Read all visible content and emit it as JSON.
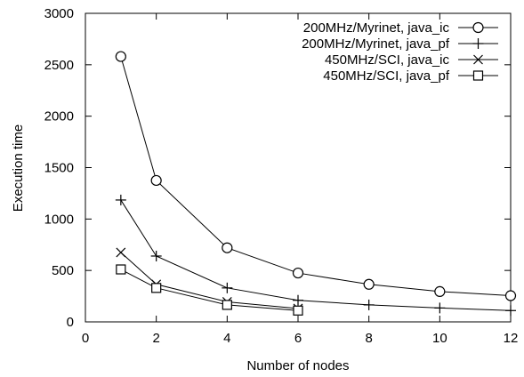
{
  "chart_data": {
    "type": "line",
    "title": "",
    "xlabel": "Number of nodes",
    "ylabel": "Execution time",
    "xlim": [
      0,
      12
    ],
    "ylim": [
      0,
      3000
    ],
    "xticks": [
      0,
      2,
      4,
      6,
      8,
      10,
      12
    ],
    "yticks": [
      0,
      500,
      1000,
      1500,
      2000,
      2500,
      3000
    ],
    "grid": false,
    "legend_position": "top-right",
    "series": [
      {
        "name": "200MHz/Myrinet, java_ic",
        "marker": "circle",
        "color": "#000000",
        "x": [
          1,
          2,
          4,
          6,
          8,
          10,
          12
        ],
        "y": [
          2580,
          1375,
          720,
          475,
          365,
          295,
          255
        ]
      },
      {
        "name": "200MHz/Myrinet, java_pf",
        "marker": "plus",
        "color": "#000000",
        "x": [
          1,
          2,
          4,
          6,
          8,
          10,
          12
        ],
        "y": [
          1185,
          640,
          330,
          210,
          165,
          135,
          110
        ]
      },
      {
        "name": "450MHz/SCI, java_ic",
        "marker": "cross",
        "color": "#000000",
        "x": [
          1,
          2,
          4,
          6
        ],
        "y": [
          675,
          365,
          195,
          130
        ]
      },
      {
        "name": "450MHz/SCI, java_pf",
        "marker": "square",
        "color": "#000000",
        "x": [
          1,
          2,
          4,
          6
        ],
        "y": [
          510,
          330,
          165,
          110
        ]
      }
    ]
  }
}
